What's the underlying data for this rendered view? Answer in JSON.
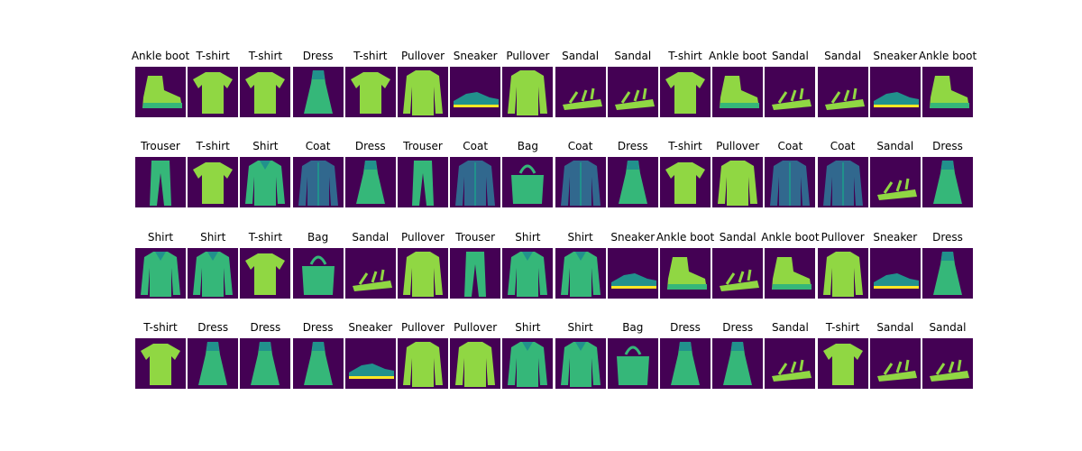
{
  "colors": {
    "background": "#440154",
    "dark_teal": "#31688e",
    "teal": "#21918c",
    "green": "#35b779",
    "lime": "#90d743",
    "yellow": "#fde725"
  },
  "rows": [
    {
      "items": [
        {
          "label": "Ankle boot",
          "icon": "ankle-boot-icon"
        },
        {
          "label": "T-shirt",
          "icon": "tshirt-icon"
        },
        {
          "label": "T-shirt",
          "icon": "tshirt-icon"
        },
        {
          "label": "Dress",
          "icon": "dress-icon"
        },
        {
          "label": "T-shirt",
          "icon": "tshirt-icon"
        },
        {
          "label": "Pullover",
          "icon": "pullover-icon"
        },
        {
          "label": "Sneaker",
          "icon": "sneaker-icon"
        },
        {
          "label": "Pullover",
          "icon": "pullover-icon"
        },
        {
          "label": "Sandal",
          "icon": "sandal-icon"
        },
        {
          "label": "Sandal",
          "icon": "sandal-icon"
        },
        {
          "label": "T-shirt",
          "icon": "tshirt-icon"
        },
        {
          "label": "Ankle boot",
          "icon": "ankle-boot-icon"
        },
        {
          "label": "Sandal",
          "icon": "sandal-icon"
        },
        {
          "label": "Sandal",
          "icon": "sandal-icon"
        },
        {
          "label": "Sneaker",
          "icon": "sneaker-icon"
        },
        {
          "label": "Ankle boot",
          "icon": "ankle-boot-icon"
        }
      ]
    },
    {
      "items": [
        {
          "label": "Trouser",
          "icon": "trouser-icon"
        },
        {
          "label": "T-shirt",
          "icon": "tshirt-icon"
        },
        {
          "label": "Shirt",
          "icon": "shirt-icon"
        },
        {
          "label": "Coat",
          "icon": "coat-icon"
        },
        {
          "label": "Dress",
          "icon": "dress-icon"
        },
        {
          "label": "Trouser",
          "icon": "trouser-icon"
        },
        {
          "label": "Coat",
          "icon": "coat-icon"
        },
        {
          "label": "Bag",
          "icon": "bag-icon"
        },
        {
          "label": "Coat",
          "icon": "coat-icon"
        },
        {
          "label": "Dress",
          "icon": "dress-icon"
        },
        {
          "label": "T-shirt",
          "icon": "tshirt-icon"
        },
        {
          "label": "Pullover",
          "icon": "pullover-icon"
        },
        {
          "label": "Coat",
          "icon": "coat-icon"
        },
        {
          "label": "Coat",
          "icon": "coat-icon"
        },
        {
          "label": "Sandal",
          "icon": "sandal-icon"
        },
        {
          "label": "Dress",
          "icon": "dress-icon"
        }
      ]
    },
    {
      "items": [
        {
          "label": "Shirt",
          "icon": "shirt-icon"
        },
        {
          "label": "Shirt",
          "icon": "shirt-icon"
        },
        {
          "label": "T-shirt",
          "icon": "tshirt-icon"
        },
        {
          "label": "Bag",
          "icon": "bag-icon"
        },
        {
          "label": "Sandal",
          "icon": "sandal-icon"
        },
        {
          "label": "Pullover",
          "icon": "pullover-icon"
        },
        {
          "label": "Trouser",
          "icon": "trouser-icon"
        },
        {
          "label": "Shirt",
          "icon": "shirt-icon"
        },
        {
          "label": "Shirt",
          "icon": "shirt-icon"
        },
        {
          "label": "Sneaker",
          "icon": "sneaker-icon"
        },
        {
          "label": "Ankle boot",
          "icon": "ankle-boot-icon"
        },
        {
          "label": "Sandal",
          "icon": "sandal-icon"
        },
        {
          "label": "Ankle boot",
          "icon": "ankle-boot-icon"
        },
        {
          "label": "Pullover",
          "icon": "pullover-icon"
        },
        {
          "label": "Sneaker",
          "icon": "sneaker-icon"
        },
        {
          "label": "Dress",
          "icon": "dress-icon"
        }
      ]
    },
    {
      "items": [
        {
          "label": "T-shirt",
          "icon": "tshirt-icon"
        },
        {
          "label": "Dress",
          "icon": "dress-icon"
        },
        {
          "label": "Dress",
          "icon": "dress-icon"
        },
        {
          "label": "Dress",
          "icon": "dress-icon"
        },
        {
          "label": "Sneaker",
          "icon": "sneaker-icon"
        },
        {
          "label": "Pullover",
          "icon": "pullover-icon"
        },
        {
          "label": "Pullover",
          "icon": "pullover-icon"
        },
        {
          "label": "Shirt",
          "icon": "shirt-icon"
        },
        {
          "label": "Shirt",
          "icon": "shirt-icon"
        },
        {
          "label": "Bag",
          "icon": "bag-icon"
        },
        {
          "label": "Dress",
          "icon": "dress-icon"
        },
        {
          "label": "Dress",
          "icon": "dress-icon"
        },
        {
          "label": "Sandal",
          "icon": "sandal-icon"
        },
        {
          "label": "T-shirt",
          "icon": "tshirt-icon"
        },
        {
          "label": "Sandal",
          "icon": "sandal-icon"
        },
        {
          "label": "Sandal",
          "icon": "sandal-icon"
        }
      ]
    }
  ]
}
